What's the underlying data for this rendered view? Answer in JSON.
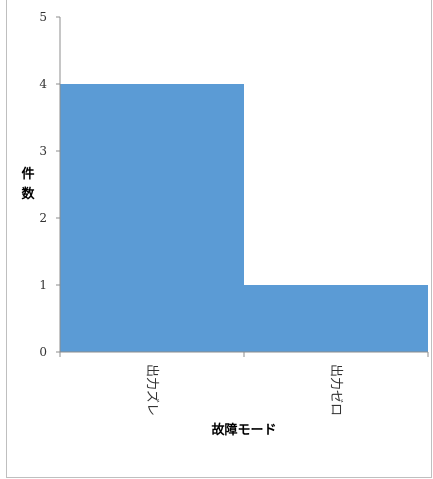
{
  "chart_data": {
    "type": "area",
    "step": true,
    "categories": [
      "出力ズレ",
      "出力ゼロ"
    ],
    "values": [
      4,
      1
    ],
    "title": "",
    "xlabel": "故障モード",
    "ylabel": "件数",
    "ylim": [
      0,
      5
    ],
    "yticks": [
      "0",
      "1",
      "2",
      "3",
      "4",
      "5"
    ],
    "grid": false,
    "legend": "none",
    "color": "#5B9BD5"
  }
}
